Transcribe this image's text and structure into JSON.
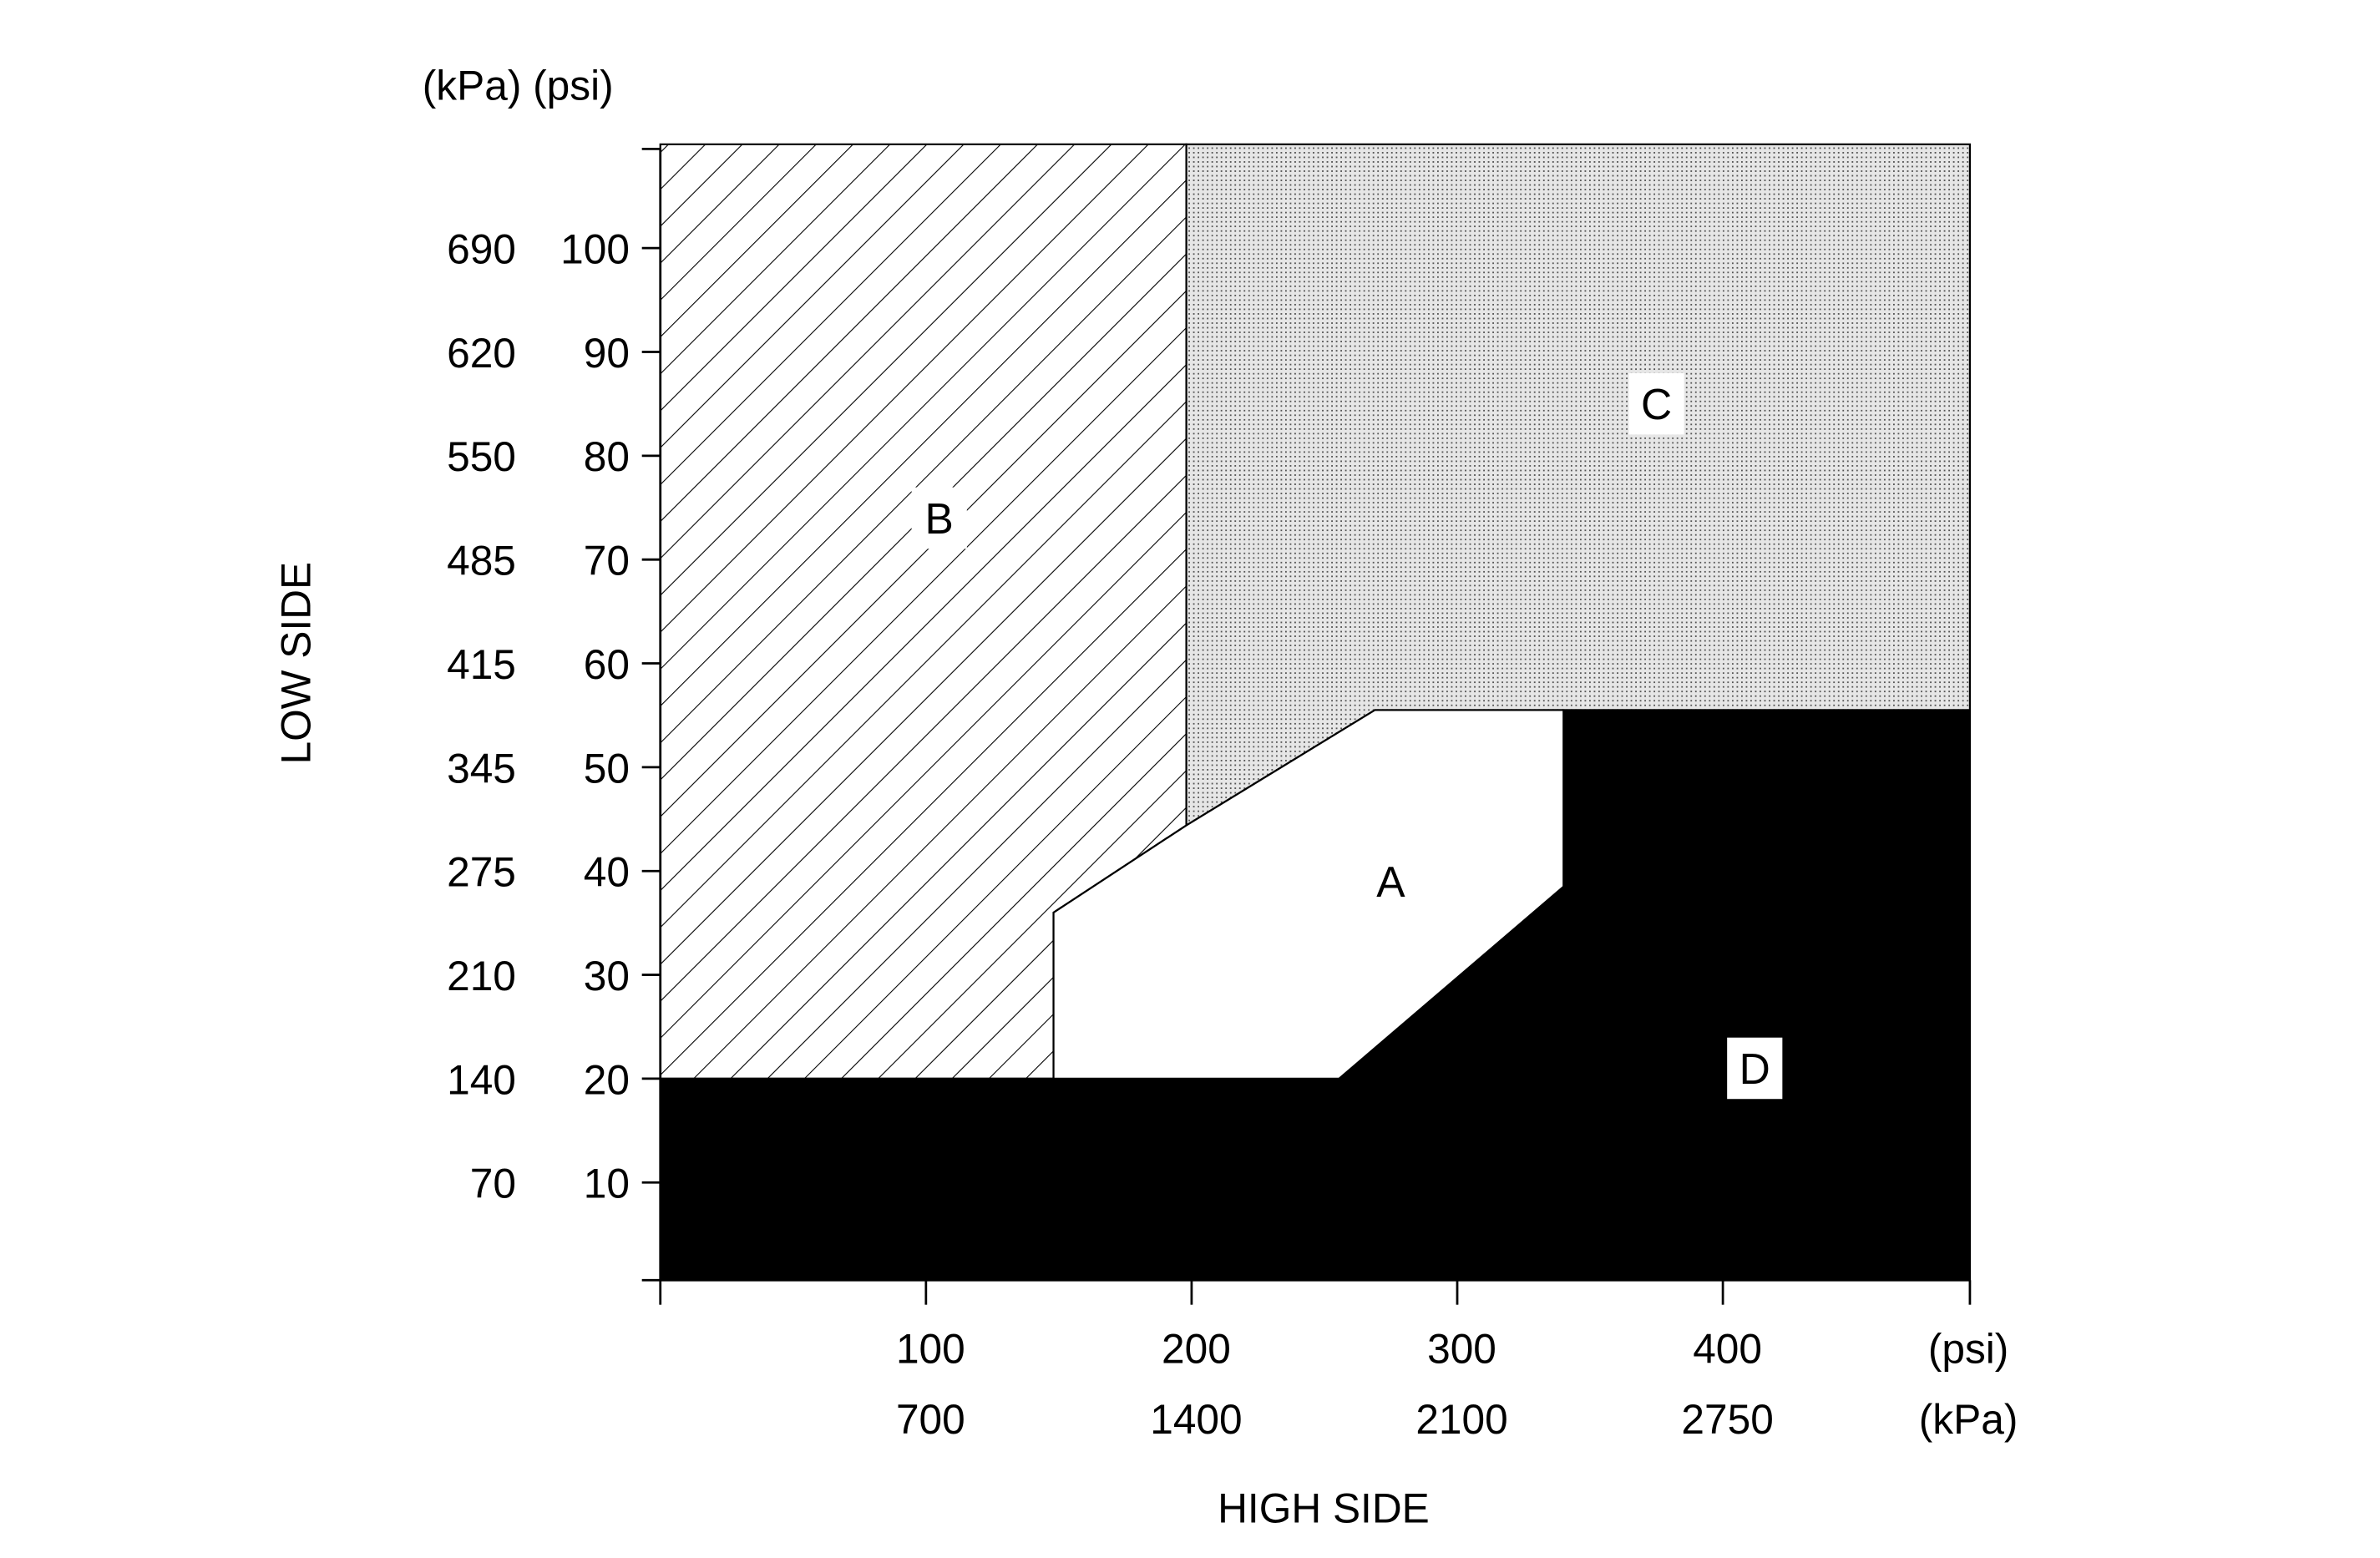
{
  "chart_data": {
    "type": "area",
    "title": "",
    "xlabel": "HIGH SIDE",
    "ylabel": "LOW SIDE",
    "y_units_header": "(kPa) (psi)",
    "x_unit_labels": {
      "psi": "(psi)",
      "kpa": "(kPa)"
    },
    "xlim": [
      0,
      493
    ],
    "ylim": [
      0,
      110
    ],
    "grid": false,
    "x_ticks": [
      {
        "psi": "100",
        "kpa": "700",
        "value": 100
      },
      {
        "psi": "200",
        "kpa": "1400",
        "value": 200
      },
      {
        "psi": "300",
        "kpa": "2100",
        "value": 300
      },
      {
        "psi": "400",
        "kpa": "2750",
        "value": 400
      }
    ],
    "y_ticks": [
      {
        "psi": "100",
        "kpa": "690",
        "value": 100
      },
      {
        "psi": "90",
        "kpa": "620",
        "value": 90
      },
      {
        "psi": "80",
        "kpa": "550",
        "value": 80
      },
      {
        "psi": "70",
        "kpa": "485",
        "value": 70
      },
      {
        "psi": "60",
        "kpa": "415",
        "value": 60
      },
      {
        "psi": "50",
        "kpa": "345",
        "value": 50
      },
      {
        "psi": "40",
        "kpa": "275",
        "value": 40
      },
      {
        "psi": "30",
        "kpa": "210",
        "value": 30
      },
      {
        "psi": "20",
        "kpa": "140",
        "value": 20
      },
      {
        "psi": "10",
        "kpa": "70",
        "value": 10
      }
    ],
    "regions": [
      {
        "label": "B",
        "fill": "hatch",
        "label_at": [
          105,
          74
        ],
        "points": [
          [
            0,
            20
          ],
          [
            148,
            20
          ],
          [
            148,
            36
          ],
          [
            198,
            44.4
          ],
          [
            198,
            110
          ],
          [
            0,
            110
          ]
        ]
      },
      {
        "label": "C",
        "fill": "dots",
        "label_at": [
          375,
          85
        ],
        "points": [
          [
            198,
            110
          ],
          [
            493,
            110
          ],
          [
            493,
            55.5
          ],
          [
            269,
            55.5
          ],
          [
            198,
            44.4
          ]
        ]
      },
      {
        "label": "D",
        "fill": "#000000",
        "label_at": [
          412,
          21
        ],
        "points": [
          [
            0,
            0
          ],
          [
            493,
            0
          ],
          [
            493,
            55.5
          ],
          [
            340,
            55.5
          ],
          [
            340,
            38.5
          ],
          [
            255.5,
            20
          ],
          [
            0,
            20
          ]
        ]
      },
      {
        "label": "A",
        "fill": "#ffffff",
        "label_at": [
          275,
          39
        ],
        "points": [
          [
            148,
            20
          ],
          [
            148,
            36
          ],
          [
            198,
            44.4
          ],
          [
            269,
            55.5
          ],
          [
            340,
            55.5
          ],
          [
            340,
            38.5
          ],
          [
            255.5,
            20
          ]
        ]
      }
    ]
  }
}
